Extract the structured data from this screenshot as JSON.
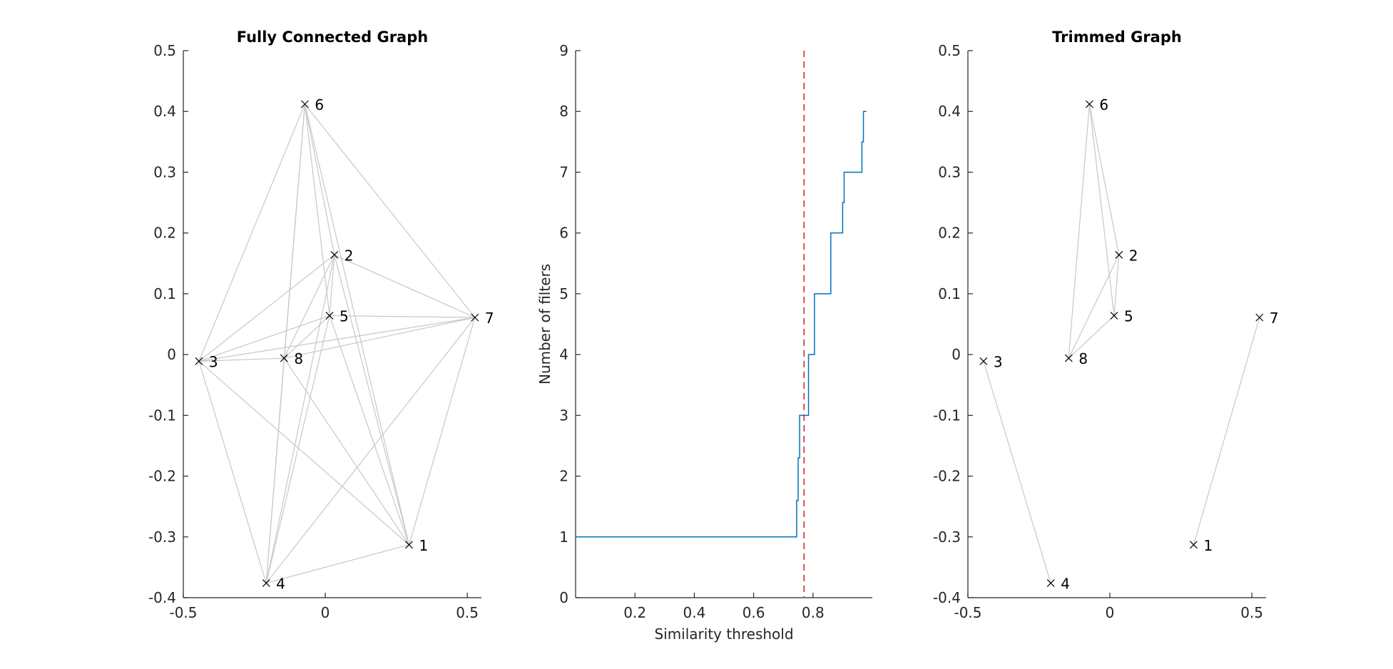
{
  "chart_data": [
    {
      "type": "scatter",
      "title": "Fully Connected Graph",
      "xlabel": "",
      "ylabel": "",
      "xlim": [
        -0.5,
        0.55
      ],
      "ylim": [
        -0.4,
        0.5
      ],
      "xticks": [
        "-0.5",
        "0",
        "0.5"
      ],
      "xtick_values": [
        -0.5,
        0,
        0.5
      ],
      "yticks": [
        "-0.4",
        "-0.3",
        "-0.2",
        "-0.1",
        "0",
        "0.1",
        "0.2",
        "0.3",
        "0.4",
        "0.5"
      ],
      "ytick_values": [
        -0.4,
        -0.3,
        -0.2,
        -0.1,
        0,
        0.1,
        0.2,
        0.3,
        0.4,
        0.5
      ],
      "nodes": [
        {
          "label": "1",
          "x": 0.295,
          "y": -0.313
        },
        {
          "label": "2",
          "x": 0.032,
          "y": 0.164
        },
        {
          "label": "3",
          "x": -0.445,
          "y": -0.011
        },
        {
          "label": "4",
          "x": -0.208,
          "y": -0.376
        },
        {
          "label": "5",
          "x": 0.015,
          "y": 0.064
        },
        {
          "label": "6",
          "x": -0.072,
          "y": 0.412
        },
        {
          "label": "7",
          "x": 0.527,
          "y": 0.061
        },
        {
          "label": "8",
          "x": -0.145,
          "y": -0.006
        }
      ],
      "edges": [
        [
          1,
          2
        ],
        [
          1,
          3
        ],
        [
          1,
          4
        ],
        [
          1,
          5
        ],
        [
          1,
          6
        ],
        [
          1,
          7
        ],
        [
          1,
          8
        ],
        [
          2,
          3
        ],
        [
          2,
          4
        ],
        [
          2,
          5
        ],
        [
          2,
          6
        ],
        [
          2,
          7
        ],
        [
          2,
          8
        ],
        [
          3,
          4
        ],
        [
          3,
          5
        ],
        [
          3,
          6
        ],
        [
          3,
          7
        ],
        [
          3,
          8
        ],
        [
          4,
          5
        ],
        [
          4,
          6
        ],
        [
          4,
          7
        ],
        [
          4,
          8
        ],
        [
          5,
          6
        ],
        [
          5,
          7
        ],
        [
          5,
          8
        ],
        [
          6,
          7
        ],
        [
          6,
          8
        ],
        [
          7,
          8
        ]
      ],
      "marker": "x",
      "edge_color": "#c8c8c8"
    },
    {
      "type": "line",
      "title": "",
      "xlabel": "Similarity threshold",
      "ylabel": "Number of filters",
      "xlim": [
        0,
        1
      ],
      "ylim": [
        0,
        9
      ],
      "xticks": [
        "0.2",
        "0.4",
        "0.6",
        "0.8"
      ],
      "xtick_values": [
        0.2,
        0.4,
        0.6,
        0.8
      ],
      "yticks": [
        "0",
        "1",
        "2",
        "3",
        "4",
        "5",
        "6",
        "7",
        "8",
        "9"
      ],
      "ytick_values": [
        0,
        1,
        2,
        3,
        4,
        5,
        6,
        7,
        8,
        9
      ],
      "series": [
        {
          "color": "#0072bd",
          "x": [
            0,
            0.74,
            0.745,
            0.75,
            0.755,
            0.765,
            0.77,
            0.775,
            0.78,
            0.785,
            0.79,
            0.795,
            0.8,
            0.805,
            0.81,
            0.82,
            0.84,
            0.845,
            0.85,
            0.86,
            0.865,
            0.87,
            0.875,
            0.88,
            0.895,
            0.9,
            0.905,
            0.91,
            0.92,
            0.93,
            0.94,
            0.945,
            0.95,
            0.96,
            0.965,
            0.97,
            0.975,
            0.98
          ],
          "y": [
            1,
            1,
            1.6,
            2.3,
            3.0,
            3.0,
            3.0,
            3.0,
            3.0,
            4.0,
            4.0,
            4.0,
            4.0,
            5.0,
            5.0,
            5.0,
            5.0,
            5.0,
            5.0,
            6.0,
            6.0,
            6.0,
            6.0,
            6.0,
            6.0,
            6.5,
            7.0,
            7.0,
            7.0,
            7.0,
            7.0,
            7.0,
            7.0,
            7.0,
            7.5,
            8.0,
            8.0,
            8.0
          ]
        }
      ],
      "threshold_line": {
        "x": 0.77,
        "color": "#d62728",
        "style": "dashed"
      }
    },
    {
      "type": "scatter",
      "title": "Trimmed Graph",
      "xlabel": "",
      "ylabel": "",
      "xlim": [
        -0.5,
        0.55
      ],
      "ylim": [
        -0.4,
        0.5
      ],
      "xticks": [
        "-0.5",
        "0",
        "0.5"
      ],
      "xtick_values": [
        -0.5,
        0,
        0.5
      ],
      "yticks": [
        "-0.4",
        "-0.3",
        "-0.2",
        "-0.1",
        "0",
        "0.1",
        "0.2",
        "0.3",
        "0.4",
        "0.5"
      ],
      "ytick_values": [
        -0.4,
        -0.3,
        -0.2,
        -0.1,
        0,
        0.1,
        0.2,
        0.3,
        0.4,
        0.5
      ],
      "nodes": [
        {
          "label": "1",
          "x": 0.295,
          "y": -0.313
        },
        {
          "label": "2",
          "x": 0.032,
          "y": 0.164
        },
        {
          "label": "3",
          "x": -0.445,
          "y": -0.011
        },
        {
          "label": "4",
          "x": -0.208,
          "y": -0.376
        },
        {
          "label": "5",
          "x": 0.015,
          "y": 0.064
        },
        {
          "label": "6",
          "x": -0.072,
          "y": 0.412
        },
        {
          "label": "7",
          "x": 0.527,
          "y": 0.061
        },
        {
          "label": "8",
          "x": -0.145,
          "y": -0.006
        }
      ],
      "edges": [
        [
          6,
          2
        ],
        [
          6,
          5
        ],
        [
          6,
          8
        ],
        [
          2,
          5
        ],
        [
          2,
          8
        ],
        [
          5,
          8
        ],
        [
          3,
          4
        ],
        [
          1,
          7
        ]
      ],
      "marker": "x",
      "edge_color": "#c8c8c8"
    }
  ]
}
